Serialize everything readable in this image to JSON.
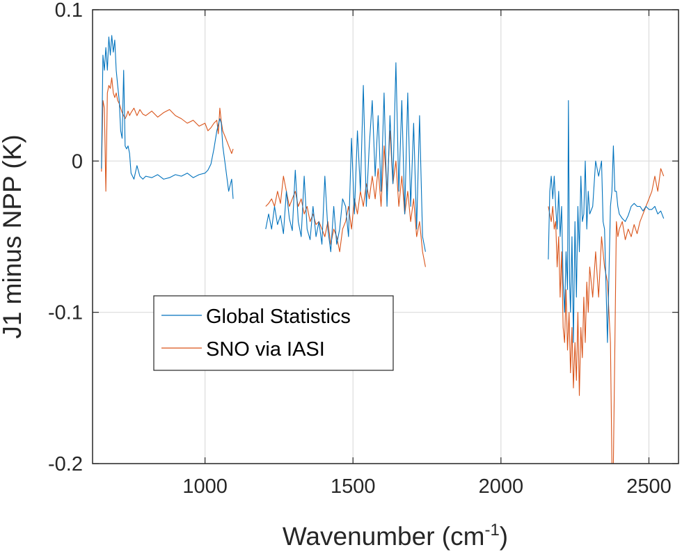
{
  "chart_data": {
    "type": "line",
    "title": "",
    "xlabel": "Wavenumber (cm",
    "xlabel_superscript": "-1",
    "xlabel_suffix": ")",
    "ylabel": "J1 minus NPP (K)",
    "xlim": [
      620,
      2600
    ],
    "ylim": [
      -0.2,
      0.1
    ],
    "xticks": [
      1000,
      1500,
      2000,
      2500
    ],
    "xtick_labels": [
      "1000",
      "1500",
      "2000",
      "2500"
    ],
    "yticks": [
      -0.2,
      -0.1,
      0,
      0.1
    ],
    "ytick_labels": [
      "-0.2",
      "-0.1",
      "0",
      "0.1"
    ],
    "grid": true,
    "legend_position": "lower-left",
    "series": [
      {
        "name": "Global Statistics",
        "color": "#0072BD",
        "segments": [
          {
            "x": [
              650,
              655,
              660,
              665,
              670,
              675,
              680,
              685,
              690,
              695,
              700,
              705,
              710,
              715,
              720,
              725,
              730,
              735,
              740,
              745,
              750,
              760,
              770,
              780,
              790,
              800,
              820,
              840,
              860,
              880,
              900,
              920,
              940,
              960,
              980,
              1000,
              1010,
              1020,
              1030,
              1040,
              1050,
              1055,
              1060,
              1070,
              1080,
              1090,
              1095
            ],
            "y": [
              -0.005,
              0.07,
              0.06,
              0.075,
              0.06,
              0.082,
              0.07,
              0.083,
              0.072,
              0.08,
              0.06,
              0.05,
              0.04,
              0.02,
              0.015,
              0.06,
              0.01,
              0.008,
              0.01,
              0.005,
              -0.008,
              -0.012,
              -0.003,
              -0.01,
              -0.012,
              -0.01,
              -0.011,
              -0.009,
              -0.012,
              -0.011,
              -0.009,
              -0.01,
              -0.008,
              -0.011,
              -0.009,
              -0.008,
              -0.006,
              -0.002,
              0.008,
              0.02,
              0.028,
              0.025,
              0.01,
              -0.005,
              -0.02,
              -0.012,
              -0.025
            ]
          },
          {
            "x": [
              1205,
              1215,
              1225,
              1235,
              1245,
              1255,
              1265,
              1275,
              1285,
              1295,
              1305,
              1315,
              1325,
              1335,
              1345,
              1355,
              1365,
              1375,
              1385,
              1395,
              1405,
              1415,
              1425,
              1435,
              1445,
              1455,
              1465,
              1475,
              1485,
              1495,
              1505,
              1515,
              1525,
              1535,
              1545,
              1555,
              1565,
              1575,
              1585,
              1595,
              1605,
              1615,
              1625,
              1635,
              1645,
              1655,
              1665,
              1675,
              1685,
              1695,
              1705,
              1715,
              1725,
              1735,
              1745
            ],
            "y": [
              -0.045,
              -0.035,
              -0.045,
              -0.03,
              -0.042,
              -0.036,
              -0.048,
              -0.02,
              -0.038,
              -0.046,
              -0.006,
              -0.04,
              -0.05,
              -0.01,
              -0.045,
              -0.052,
              -0.03,
              -0.05,
              -0.04,
              -0.055,
              -0.01,
              -0.045,
              -0.06,
              -0.03,
              -0.055,
              -0.045,
              -0.025,
              -0.03,
              -0.05,
              0.015,
              -0.035,
              0.02,
              -0.02,
              0.05,
              -0.03,
              0.01,
              0.04,
              -0.01,
              0.03,
              -0.02,
              0.045,
              -0.03,
              0.03,
              -0.015,
              0.065,
              -0.02,
              0.04,
              -0.035,
              0.045,
              -0.03,
              0.025,
              -0.045,
              0.03,
              -0.05,
              -0.06
            ]
          },
          {
            "x": [
              2160,
              2165,
              2170,
              2175,
              2180,
              2185,
              2190,
              2195,
              2200,
              2205,
              2210,
              2215,
              2220,
              2225,
              2228,
              2232,
              2235,
              2240,
              2245,
              2250,
              2255,
              2260,
              2265,
              2270,
              2275,
              2280,
              2285,
              2290,
              2295,
              2300,
              2310,
              2320,
              2330,
              2340,
              2345,
              2350,
              2360,
              2370,
              2375,
              2380,
              2385,
              2390,
              2395,
              2400,
              2410,
              2420,
              2430,
              2440,
              2450,
              2460,
              2470,
              2480,
              2490,
              2500,
              2510,
              2520,
              2530,
              2540,
              2550
            ],
            "y": [
              -0.065,
              -0.02,
              -0.01,
              -0.025,
              -0.01,
              -0.03,
              -0.045,
              -0.02,
              -0.05,
              -0.03,
              -0.08,
              -0.1,
              -0.06,
              -0.085,
              0.04,
              -0.08,
              -0.1,
              -0.05,
              -0.12,
              -0.04,
              -0.09,
              -0.03,
              -0.06,
              -0.01,
              -0.04,
              -0.035,
              0.0,
              -0.045,
              -0.02,
              -0.035,
              -0.03,
              0.0,
              -0.01,
              0.0,
              -0.04,
              -0.045,
              -0.12,
              -0.03,
              -0.02,
              0.01,
              -0.02,
              -0.02,
              -0.03,
              -0.035,
              -0.038,
              -0.04,
              -0.036,
              -0.03,
              -0.028,
              -0.03,
              -0.03,
              -0.033,
              -0.03,
              -0.032,
              -0.032,
              -0.03,
              -0.035,
              -0.033,
              -0.038
            ]
          }
        ]
      },
      {
        "name": "SNO via IASI",
        "color": "#D95319",
        "segments": [
          {
            "x": [
              650,
              655,
              660,
              665,
              670,
              675,
              680,
              685,
              690,
              695,
              700,
              705,
              710,
              715,
              720,
              725,
              730,
              735,
              740,
              745,
              750,
              760,
              770,
              780,
              790,
              800,
              820,
              840,
              860,
              880,
              900,
              920,
              940,
              960,
              980,
              1000,
              1010,
              1020,
              1030,
              1040,
              1045,
              1050,
              1055,
              1060,
              1070,
              1080,
              1090,
              1095
            ],
            "y": [
              -0.007,
              0.04,
              0.035,
              -0.02,
              0.045,
              0.05,
              0.048,
              0.055,
              0.045,
              0.042,
              0.045,
              0.04,
              0.038,
              0.035,
              0.032,
              0.03,
              0.028,
              0.03,
              0.033,
              0.03,
              0.032,
              0.035,
              0.03,
              0.034,
              0.031,
              0.03,
              0.033,
              0.029,
              0.032,
              0.034,
              0.03,
              0.028,
              0.025,
              0.027,
              0.023,
              0.025,
              0.02,
              0.022,
              0.025,
              0.027,
              0.018,
              0.035,
              0.026,
              0.02,
              0.015,
              0.01,
              0.005,
              0.008
            ]
          },
          {
            "x": [
              1205,
              1215,
              1225,
              1235,
              1245,
              1255,
              1265,
              1275,
              1285,
              1295,
              1305,
              1315,
              1325,
              1335,
              1345,
              1355,
              1365,
              1375,
              1385,
              1395,
              1405,
              1415,
              1425,
              1435,
              1445,
              1455,
              1465,
              1475,
              1485,
              1495,
              1505,
              1515,
              1525,
              1535,
              1545,
              1555,
              1565,
              1575,
              1585,
              1595,
              1605,
              1615,
              1625,
              1635,
              1645,
              1655,
              1665,
              1675,
              1685,
              1695,
              1705,
              1715,
              1725,
              1735,
              1745
            ],
            "y": [
              -0.03,
              -0.028,
              -0.025,
              -0.03,
              -0.02,
              -0.028,
              -0.01,
              -0.02,
              -0.03,
              -0.025,
              -0.02,
              -0.03,
              -0.025,
              -0.035,
              -0.03,
              -0.04,
              -0.035,
              -0.042,
              -0.04,
              -0.045,
              -0.05,
              -0.04,
              -0.055,
              -0.045,
              -0.05,
              -0.06,
              -0.045,
              -0.04,
              -0.03,
              -0.045,
              -0.025,
              -0.035,
              -0.02,
              -0.03,
              -0.015,
              -0.025,
              -0.01,
              -0.025,
              -0.005,
              -0.03,
              0.01,
              -0.02,
              0.02,
              -0.015,
              0.0,
              -0.03,
              -0.01,
              -0.035,
              -0.02,
              -0.04,
              -0.025,
              -0.05,
              -0.04,
              -0.06,
              -0.07
            ]
          },
          {
            "x": [
              2160,
              2165,
              2170,
              2175,
              2180,
              2185,
              2190,
              2195,
              2200,
              2205,
              2210,
              2215,
              2220,
              2225,
              2230,
              2235,
              2240,
              2245,
              2250,
              2255,
              2260,
              2265,
              2270,
              2275,
              2280,
              2285,
              2290,
              2295,
              2300,
              2310,
              2320,
              2330,
              2340,
              2350,
              2360,
              2370,
              2375,
              2380,
              2385,
              2390,
              2395,
              2400,
              2410,
              2420,
              2430,
              2440,
              2450,
              2460,
              2470,
              2480,
              2490,
              2500,
              2510,
              2520,
              2530,
              2540,
              2550
            ],
            "y": [
              -0.03,
              -0.035,
              -0.04,
              -0.03,
              -0.045,
              -0.04,
              -0.07,
              -0.05,
              -0.09,
              -0.06,
              -0.11,
              -0.12,
              -0.085,
              -0.125,
              -0.1,
              -0.14,
              -0.11,
              -0.15,
              -0.12,
              -0.145,
              -0.1,
              -0.155,
              -0.11,
              -0.13,
              -0.09,
              -0.12,
              -0.08,
              -0.1,
              -0.07,
              -0.09,
              -0.06,
              -0.09,
              -0.05,
              -0.07,
              -0.08,
              -0.12,
              -0.2,
              -0.2,
              -0.12,
              -0.04,
              -0.05,
              -0.045,
              -0.04,
              -0.052,
              -0.045,
              -0.05,
              -0.042,
              -0.048,
              -0.04,
              -0.035,
              -0.03,
              -0.025,
              -0.02,
              -0.01,
              -0.02,
              -0.005,
              -0.01
            ]
          }
        ]
      }
    ]
  }
}
